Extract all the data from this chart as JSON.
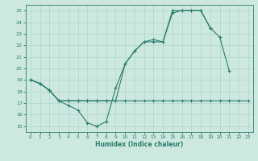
{
  "xlabel": "Humidex (Indice chaleur)",
  "bg_color": "#cce8df",
  "line_color": "#2e7d6e",
  "grid_color": "#aad4c8",
  "xlim": [
    -0.5,
    23.5
  ],
  "ylim": [
    14.5,
    25.5
  ],
  "xticks": [
    0,
    1,
    2,
    3,
    4,
    5,
    6,
    7,
    8,
    9,
    10,
    11,
    12,
    13,
    14,
    15,
    16,
    17,
    18,
    19,
    20,
    21,
    22,
    23
  ],
  "yticks": [
    15,
    16,
    17,
    18,
    19,
    20,
    21,
    22,
    23,
    24,
    25
  ],
  "line1_x": [
    0,
    1,
    2,
    3,
    4,
    5,
    6,
    7,
    8,
    9,
    10,
    11,
    12,
    13,
    14,
    15,
    16,
    17,
    18,
    19,
    20,
    21,
    22,
    23
  ],
  "line1_y": [
    19.0,
    18.7,
    18.1,
    17.2,
    16.8,
    16.4,
    15.3,
    15.0,
    15.4,
    18.3,
    20.4,
    21.5,
    22.3,
    22.3,
    22.3,
    24.8,
    25.0,
    25.0,
    25.0,
    23.5,
    22.7,
    19.8,
    null,
    null
  ],
  "line2_x": [
    0,
    1,
    2,
    3,
    4,
    5,
    6,
    7,
    8,
    9,
    10,
    11,
    12,
    13,
    14,
    15,
    16,
    17,
    18,
    19,
    20,
    21,
    22,
    23
  ],
  "line2_y": [
    19.0,
    18.7,
    18.1,
    17.2,
    17.2,
    17.2,
    17.2,
    17.2,
    17.2,
    17.2,
    20.4,
    21.5,
    22.3,
    22.5,
    22.3,
    25.0,
    25.0,
    25.0,
    25.0,
    23.5,
    null,
    null,
    null,
    null
  ],
  "line3_x": [
    0,
    1,
    2,
    3,
    4,
    5,
    6,
    7,
    8,
    9,
    10,
    11,
    12,
    13,
    14,
    15,
    16,
    17,
    18,
    19,
    20,
    21,
    22,
    23
  ],
  "line3_y": [
    19.0,
    18.7,
    18.1,
    17.2,
    17.2,
    17.2,
    17.2,
    17.2,
    17.2,
    17.2,
    17.2,
    17.2,
    17.2,
    17.2,
    17.2,
    17.2,
    17.2,
    17.2,
    17.2,
    17.2,
    17.2,
    17.2,
    17.2,
    17.2
  ]
}
